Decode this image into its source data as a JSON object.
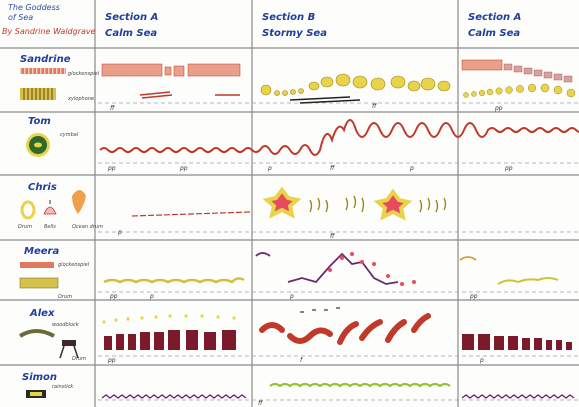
{
  "title": {
    "line1": "The Goddess",
    "line2": "of Sea",
    "author": "By Sandrine Waldgrave"
  },
  "sections": [
    {
      "name": "Section A",
      "mood": "Calm Sea"
    },
    {
      "name": "Section B",
      "mood": "Stormy Sea"
    },
    {
      "name": "Section A",
      "mood": "Calm Sea"
    }
  ],
  "performers": [
    {
      "name": "Sandrine",
      "instrument_labels": [
        "glockenspiel",
        "xylophone"
      ]
    },
    {
      "name": "Tom",
      "instrument_labels": [
        "cymbal"
      ]
    },
    {
      "name": "Chris",
      "instrument_labels": [
        "Drum",
        "Bells",
        "Ocean drum"
      ]
    },
    {
      "name": "Meera",
      "instrument_labels": [
        "glockenspiel",
        "Drum"
      ]
    },
    {
      "name": "Alex",
      "instrument_labels": [
        "woodblock",
        "Drum"
      ]
    },
    {
      "name": "Simon",
      "instrument_labels": [
        "rainstick"
      ]
    }
  ],
  "dynamics": {
    "sandrine": [
      "ff",
      "ff",
      "pp"
    ],
    "tom": [
      "pp",
      "pp",
      "p",
      "ff",
      "p",
      "pp"
    ],
    "chris": [
      "p",
      "ff"
    ],
    "meera": [
      "pp",
      "p",
      "p",
      "pp"
    ],
    "alex": [
      "pp",
      "f",
      "p"
    ],
    "simon": [
      "ff"
    ]
  },
  "colors": {
    "ink_blue": "#1f3d9c",
    "grid": "#7a7a7a",
    "red_wave": "#c0392b",
    "yellow": "#e8d34a",
    "purple": "#6b2a6b",
    "green": "#3a7a2a"
  }
}
